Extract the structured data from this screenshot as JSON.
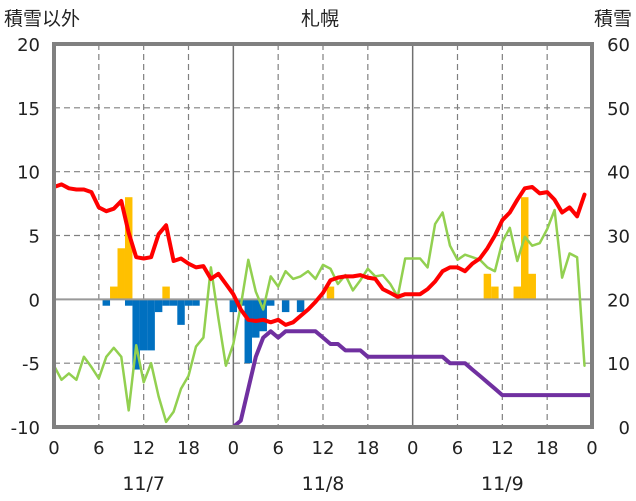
{
  "chart_data": {
    "type": "line",
    "title": "札幌",
    "y_left_label": "積雪以外",
    "y_right_label": "積雪",
    "y_left_range": [
      -10,
      20
    ],
    "y_right_range": [
      0,
      60
    ],
    "y_left_ticks": [
      "20",
      "15",
      "10",
      "5",
      "0",
      "-5",
      "-10"
    ],
    "y_right_ticks": [
      "60",
      "50",
      "40",
      "30",
      "20",
      "10",
      "0"
    ],
    "x_range_hours": [
      0,
      72
    ],
    "x_ticks": [
      "0",
      "6",
      "12",
      "18",
      "0",
      "6",
      "12",
      "18",
      "0",
      "6",
      "12",
      "18",
      "0"
    ],
    "day_labels": [
      "11/7",
      "11/8",
      "11/9"
    ],
    "grid": "dashed at 6-hour intervals, solid at day boundaries",
    "colors": {
      "temperature": "#ff0000",
      "dewpoint": "#92d050",
      "snow_depth": "#7030a0",
      "precip_bar_up": "#ffc000",
      "precip_bar_down": "#0070c0",
      "zero_line": "#999999",
      "frame": "#808080"
    },
    "series": [
      {
        "key": "temperature",
        "axis": "left",
        "x": [
          0,
          1,
          2,
          3,
          4,
          5,
          6,
          7,
          8,
          9,
          10,
          11,
          12,
          13,
          14,
          15,
          16,
          17,
          18,
          19,
          20,
          21,
          22,
          23,
          24,
          25,
          26,
          27,
          28,
          29,
          30,
          31,
          32,
          33,
          34,
          35,
          36,
          37,
          38,
          39,
          40,
          41,
          42,
          43,
          44,
          45,
          46,
          47,
          48,
          49,
          50,
          51,
          52,
          53,
          54,
          55,
          56,
          57,
          58,
          59,
          60,
          61,
          62,
          63,
          64,
          65,
          66,
          67,
          68,
          69,
          70,
          71
        ],
        "values": [
          8.8,
          9.0,
          8.7,
          8.6,
          8.6,
          8.4,
          7.2,
          6.9,
          7.1,
          7.7,
          5.2,
          3.3,
          3.2,
          3.3,
          5.1,
          5.8,
          3.0,
          3.2,
          2.8,
          2.5,
          2.6,
          1.6,
          2.0,
          1.2,
          0.4,
          -0.8,
          -1.6,
          -1.7,
          -1.6,
          -1.8,
          -1.6,
          -2.0,
          -1.8,
          -1.3,
          -0.8,
          -0.2,
          0.5,
          1.5,
          1.7,
          1.8,
          1.8,
          1.9,
          1.7,
          1.6,
          0.8,
          0.5,
          0.2,
          0.4,
          0.4,
          0.4,
          0.8,
          1.4,
          2.2,
          2.5,
          2.5,
          2.2,
          2.8,
          3.2,
          4.0,
          5.0,
          6.2,
          6.8,
          7.8,
          8.7,
          8.8,
          8.3,
          8.4,
          7.8,
          6.8,
          7.2,
          6.5,
          8.2
        ]
      },
      {
        "key": "dewpoint",
        "axis": "left",
        "x": [
          0,
          1,
          2,
          3,
          4,
          5,
          6,
          7,
          8,
          9,
          10,
          11,
          12,
          13,
          14,
          15,
          16,
          17,
          18,
          19,
          20,
          21,
          22,
          23,
          24,
          25,
          26,
          27,
          28,
          29,
          30,
          31,
          32,
          33,
          34,
          35,
          36,
          37,
          38,
          39,
          40,
          41,
          42,
          43,
          44,
          45,
          46,
          47,
          48,
          49,
          50,
          51,
          52,
          53,
          54,
          55,
          56,
          57,
          58,
          59,
          60,
          61,
          62,
          63,
          64,
          65,
          66,
          67,
          68,
          69,
          70,
          71
        ],
        "values": [
          -5.2,
          -6.3,
          -5.8,
          -6.3,
          -4.5,
          -5.3,
          -6.2,
          -4.5,
          -3.8,
          -4.5,
          -8.7,
          -3.6,
          -6.5,
          -5.0,
          -7.6,
          -9.6,
          -8.8,
          -7.0,
          -6.0,
          -3.7,
          -3.0,
          2.5,
          -1.5,
          -5.2,
          -3.5,
          -0.5,
          3.1,
          0.6,
          -0.8,
          1.8,
          1.0,
          2.2,
          1.6,
          1.8,
          2.2,
          1.6,
          2.7,
          2.4,
          1.2,
          1.9,
          0.7,
          1.5,
          2.4,
          1.8,
          1.9,
          1.2,
          0.2,
          3.2,
          3.2,
          3.2,
          2.5,
          5.9,
          6.8,
          4.2,
          3.1,
          3.5,
          3.3,
          3.1,
          2.5,
          2.2,
          4.5,
          5.6,
          3.0,
          4.9,
          4.2,
          4.4,
          5.5,
          7.0,
          1.7,
          3.6,
          3.3,
          -5.2
        ]
      },
      {
        "key": "snow_depth",
        "axis": "right",
        "x": [
          0,
          24,
          25,
          26,
          27,
          28,
          29,
          30,
          31,
          32,
          33,
          34,
          35,
          36,
          37,
          38,
          39,
          40,
          41,
          42,
          43,
          44,
          45,
          46,
          47,
          48,
          49,
          50,
          51,
          52,
          53,
          54,
          55,
          56,
          57,
          58,
          59,
          60,
          61,
          62,
          63,
          64,
          65,
          66,
          67,
          68,
          69,
          70,
          71,
          72
        ],
        "values": [
          0,
          0,
          1,
          6,
          11,
          14,
          15,
          14,
          15,
          15,
          15,
          15,
          15,
          14,
          13,
          13,
          12,
          12,
          12,
          11,
          11,
          11,
          11,
          11,
          11,
          11,
          11,
          11,
          11,
          11,
          10,
          10,
          10,
          9,
          8,
          7,
          6,
          5,
          5,
          5,
          5,
          5,
          5,
          5,
          5,
          5,
          5,
          5,
          5,
          5
        ]
      },
      {
        "key": "precipitation",
        "axis": "left",
        "type": "bar",
        "up": [
          {
            "x": 8,
            "value": 1.0
          },
          {
            "x": 9,
            "value": 4.0
          },
          {
            "x": 10,
            "value": 8.0
          },
          {
            "x": 15,
            "value": 1.0
          },
          {
            "x": 37,
            "value": 1.0
          },
          {
            "x": 58,
            "value": 2.0
          },
          {
            "x": 59,
            "value": 1.0
          },
          {
            "x": 62,
            "value": 1.0
          },
          {
            "x": 63,
            "value": 8.0
          },
          {
            "x": 64,
            "value": 2.0
          }
        ],
        "down": [
          {
            "x": 7,
            "value": 0.5
          },
          {
            "x": 10,
            "value": 0.5
          },
          {
            "x": 11,
            "value": 5.5
          },
          {
            "x": 12,
            "value": 4.0
          },
          {
            "x": 13,
            "value": 4.0
          },
          {
            "x": 14,
            "value": 1.0
          },
          {
            "x": 15,
            "value": 0.5
          },
          {
            "x": 16,
            "value": 0.5
          },
          {
            "x": 17,
            "value": 2.0
          },
          {
            "x": 18,
            "value": 0.5
          },
          {
            "x": 19,
            "value": 0.5
          },
          {
            "x": 24,
            "value": 1.0
          },
          {
            "x": 25,
            "value": 0.5
          },
          {
            "x": 26,
            "value": 5.0
          },
          {
            "x": 27,
            "value": 3.0
          },
          {
            "x": 28,
            "value": 2.5
          },
          {
            "x": 29,
            "value": 0.5
          },
          {
            "x": 31,
            "value": 1.0
          },
          {
            "x": 33,
            "value": 1.0
          }
        ]
      }
    ]
  }
}
